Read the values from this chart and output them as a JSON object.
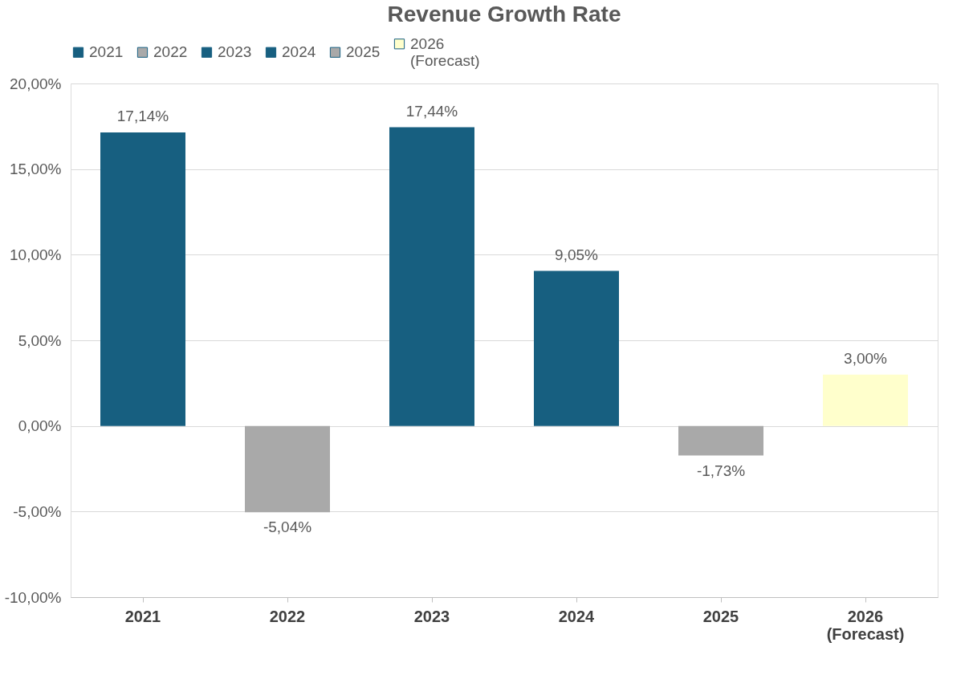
{
  "chart_data": {
    "type": "bar",
    "title": "Revenue Growth Rate",
    "categories": [
      "2021",
      "2022",
      "2023",
      "2024",
      "2025",
      "2026 (Forecast)"
    ],
    "series": [
      {
        "name": "2021",
        "color": "#175f80",
        "values": [
          17.14,
          null,
          null,
          null,
          null,
          null
        ],
        "value_labels": [
          "17,14%",
          null,
          null,
          null,
          null,
          null
        ]
      },
      {
        "name": "2022",
        "color": "#a9a9a9",
        "values": [
          null,
          -5.04,
          null,
          null,
          null,
          null
        ],
        "value_labels": [
          null,
          "-5,04%",
          null,
          null,
          null,
          null
        ]
      },
      {
        "name": "2023",
        "color": "#175f80",
        "values": [
          null,
          null,
          17.44,
          null,
          null,
          null
        ],
        "value_labels": [
          null,
          null,
          "17,44%",
          null,
          null,
          null
        ]
      },
      {
        "name": "2024",
        "color": "#175f80",
        "values": [
          null,
          null,
          null,
          9.05,
          null,
          null
        ],
        "value_labels": [
          null,
          null,
          null,
          "9,05%",
          null,
          null
        ]
      },
      {
        "name": "2025",
        "color": "#a9a9a9",
        "values": [
          null,
          null,
          null,
          null,
          -1.73,
          null
        ],
        "value_labels": [
          null,
          null,
          null,
          null,
          "-1,73%",
          null
        ]
      },
      {
        "name": "2026 (Forecast)",
        "color": "#ffffcc",
        "values": [
          null,
          null,
          null,
          null,
          null,
          3.0
        ],
        "value_labels": [
          null,
          null,
          null,
          null,
          null,
          "3,00%"
        ]
      }
    ],
    "ylim": [
      -10,
      20
    ],
    "yticks": [
      {
        "value": -10,
        "label": "-10,00%"
      },
      {
        "value": -5,
        "label": "-5,00%"
      },
      {
        "value": 0,
        "label": "0,00%"
      },
      {
        "value": 5,
        "label": "5,00%"
      },
      {
        "value": 10,
        "label": "10,00%"
      },
      {
        "value": 15,
        "label": "15,00%"
      },
      {
        "value": 20,
        "label": "20,00%"
      }
    ],
    "grid": "y",
    "legend": "top"
  }
}
